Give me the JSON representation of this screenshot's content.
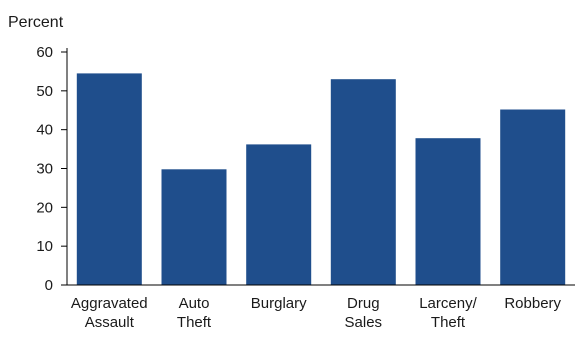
{
  "chart_data": {
    "type": "bar",
    "ylabel": "Percent",
    "xlabel": "",
    "title": "",
    "categories": [
      [
        "Aggravated",
        "Assault"
      ],
      [
        "Auto",
        "Theft"
      ],
      [
        "Burglary"
      ],
      [
        "Drug",
        "Sales"
      ],
      [
        "Larceny/",
        "Theft"
      ],
      [
        "Robbery"
      ]
    ],
    "values": [
      54.5,
      29.8,
      36.2,
      53.0,
      37.8,
      45.2
    ],
    "ylim": [
      0,
      60
    ],
    "yticks": [
      0,
      10,
      20,
      30,
      40,
      50,
      60
    ],
    "grid": false,
    "legend": "none",
    "colors": {
      "bar": "#1f4e8c",
      "axis": "#000000",
      "text": "#1a1a1a"
    }
  }
}
